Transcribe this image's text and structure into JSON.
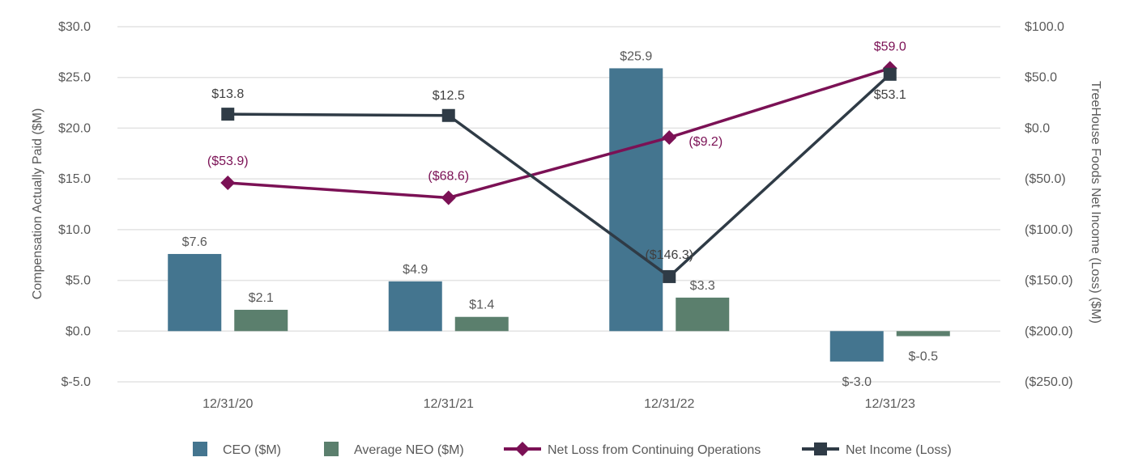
{
  "chart_data": {
    "type": "bar",
    "categories": [
      "12/31/20",
      "12/31/21",
      "12/31/22",
      "12/31/23"
    ],
    "ylabel": "Compensation Actually Paid ($M)",
    "ylabel_right": "TreeHouse Foods Net Income (Loss) ($M)",
    "ylim": [
      -5,
      30
    ],
    "ylim_right": [
      -250,
      100
    ],
    "yticks": [
      "$-5.0",
      "$0.0",
      "$5.0",
      "$10.0",
      "$15.0",
      "$20.0",
      "$25.0",
      "$30.0"
    ],
    "yticks_right": [
      "($250.0)",
      "($200.0)",
      "($150.0)",
      "($100.0)",
      "($50.0)",
      "$0.0",
      "$50.0",
      "$100.0"
    ],
    "grid": true,
    "legend_position": "bottom",
    "series": [
      {
        "name": "CEO ($M)",
        "type": "bar",
        "axis": "left",
        "color": "#44758f",
        "values": [
          7.6,
          4.9,
          25.9,
          -3.0
        ],
        "labels": [
          "$7.6",
          "$4.9",
          "$25.9",
          "$-3.0"
        ]
      },
      {
        "name": "Average NEO ($M)",
        "type": "bar",
        "axis": "left",
        "color": "#5b7f6d",
        "values": [
          2.1,
          1.4,
          3.3,
          -0.5
        ],
        "labels": [
          "$2.1",
          "$1.4",
          "$3.3",
          "$-0.5"
        ]
      },
      {
        "name": "Net Loss from Continuing Operations",
        "type": "line",
        "marker": "diamond",
        "axis": "right",
        "color": "#7b1155",
        "values": [
          -53.9,
          -68.6,
          -9.2,
          59.0
        ],
        "labels": [
          "($53.9)",
          "($68.6)",
          "($9.2)",
          "$59.0"
        ]
      },
      {
        "name": "Net Income (Loss)",
        "type": "line",
        "marker": "square",
        "axis": "right",
        "color": "#2f3b46",
        "values": [
          13.8,
          12.5,
          -146.3,
          53.1
        ],
        "labels": [
          "$13.8",
          "$12.5",
          "($146.3)",
          "$53.1"
        ]
      }
    ]
  }
}
